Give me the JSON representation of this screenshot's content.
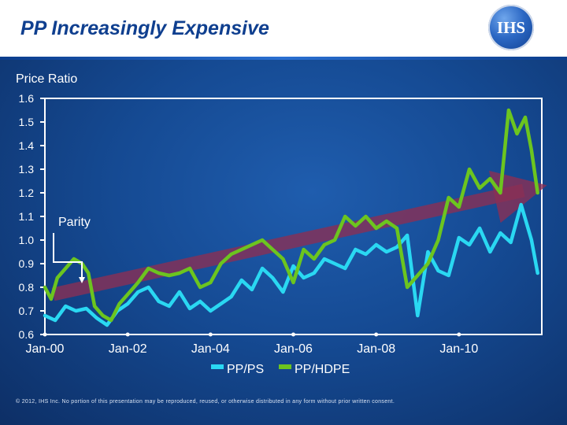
{
  "header": {
    "title": "PP Increasingly Expensive",
    "logo_text": "IHS"
  },
  "colors": {
    "background": "#154a93",
    "pp_ps": "#2ad8f2",
    "pp_hdpe": "#6cc51f",
    "trend_arrow": "#8a2f55",
    "text": "#ffffff"
  },
  "footer": {
    "copyright": "© 2012, IHS Inc. No portion of this presentation may be reproduced, reused, or otherwise distributed in any form without prior written consent."
  },
  "chart_data": {
    "type": "line",
    "title": "PP Increasingly Expensive",
    "ylabel": "Price Ratio",
    "xlabel": "",
    "ylim": [
      0.6,
      1.6
    ],
    "xlim": [
      2000.0,
      2012.0
    ],
    "yticks": [
      "0.6",
      "0.7",
      "0.8",
      "0.9",
      "1.0",
      "1.1",
      "1.2",
      "1.3",
      "1.4",
      "1.5",
      "1.6"
    ],
    "xticks": [
      {
        "label": "Jan-00",
        "x": 2000
      },
      {
        "label": "Jan-02",
        "x": 2002
      },
      {
        "label": "Jan-04",
        "x": 2004
      },
      {
        "label": "Jan-06",
        "x": 2006
      },
      {
        "label": "Jan-08",
        "x": 2008
      },
      {
        "label": "Jan-10",
        "x": 2010
      }
    ],
    "legend": {
      "position": "bottom"
    },
    "annotations": {
      "parity": {
        "label": "Parity",
        "y": 1.0
      },
      "trend": {
        "from": [
          2000.2,
          0.77
        ],
        "to": [
          2011.9,
          1.22
        ]
      }
    },
    "series": [
      {
        "name": "PP/PS",
        "color": "#2ad8f2",
        "x": [
          2000.0,
          2000.25,
          2000.5,
          2000.75,
          2001.0,
          2001.25,
          2001.5,
          2001.75,
          2002.0,
          2002.25,
          2002.5,
          2002.75,
          2003.0,
          2003.25,
          2003.5,
          2003.75,
          2004.0,
          2004.25,
          2004.5,
          2004.75,
          2005.0,
          2005.25,
          2005.5,
          2005.75,
          2006.0,
          2006.25,
          2006.5,
          2006.75,
          2007.0,
          2007.25,
          2007.5,
          2007.75,
          2008.0,
          2008.25,
          2008.5,
          2008.75,
          2009.0,
          2009.25,
          2009.5,
          2009.75,
          2010.0,
          2010.25,
          2010.5,
          2010.75,
          2011.0,
          2011.25,
          2011.5,
          2011.75,
          2011.9
        ],
        "values": [
          0.68,
          0.66,
          0.72,
          0.7,
          0.71,
          0.67,
          0.64,
          0.7,
          0.73,
          0.78,
          0.8,
          0.74,
          0.72,
          0.78,
          0.71,
          0.74,
          0.7,
          0.73,
          0.76,
          0.83,
          0.79,
          0.88,
          0.84,
          0.78,
          0.89,
          0.84,
          0.86,
          0.92,
          0.9,
          0.88,
          0.96,
          0.94,
          0.98,
          0.95,
          0.97,
          1.02,
          0.68,
          0.95,
          0.87,
          0.85,
          1.01,
          0.98,
          1.05,
          0.95,
          1.03,
          0.99,
          1.15,
          1.0,
          0.86
        ]
      },
      {
        "name": "PP/HDPE",
        "color": "#6cc51f",
        "x": [
          2000.0,
          2000.15,
          2000.3,
          2000.5,
          2000.7,
          2000.9,
          2001.05,
          2001.2,
          2001.4,
          2001.6,
          2001.8,
          2002.0,
          2002.25,
          2002.5,
          2002.75,
          2003.0,
          2003.25,
          2003.5,
          2003.75,
          2004.0,
          2004.25,
          2004.5,
          2004.75,
          2005.0,
          2005.25,
          2005.5,
          2005.75,
          2006.0,
          2006.25,
          2006.5,
          2006.75,
          2007.0,
          2007.25,
          2007.5,
          2007.75,
          2008.0,
          2008.25,
          2008.5,
          2008.75,
          2009.0,
          2009.25,
          2009.5,
          2009.75,
          2010.0,
          2010.25,
          2010.5,
          2010.75,
          2011.0,
          2011.2,
          2011.4,
          2011.6,
          2011.75,
          2011.9
        ],
        "values": [
          0.8,
          0.75,
          0.84,
          0.88,
          0.92,
          0.9,
          0.86,
          0.72,
          0.68,
          0.66,
          0.73,
          0.77,
          0.82,
          0.88,
          0.86,
          0.85,
          0.86,
          0.88,
          0.8,
          0.82,
          0.9,
          0.94,
          0.96,
          0.98,
          1.0,
          0.96,
          0.92,
          0.82,
          0.96,
          0.92,
          0.98,
          1.0,
          1.1,
          1.06,
          1.1,
          1.05,
          1.08,
          1.05,
          0.8,
          0.85,
          0.9,
          1.0,
          1.18,
          1.14,
          1.3,
          1.22,
          1.26,
          1.2,
          1.55,
          1.45,
          1.52,
          1.38,
          1.2
        ]
      }
    ]
  }
}
